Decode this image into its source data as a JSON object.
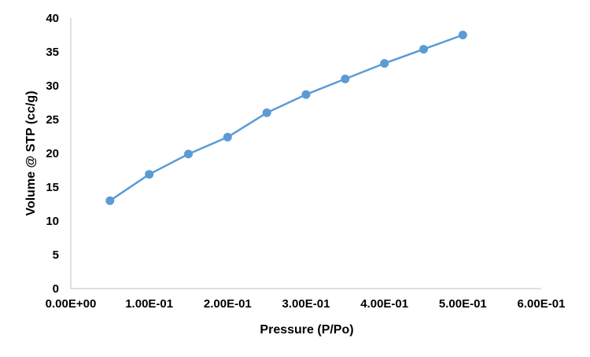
{
  "chart_data": {
    "type": "line",
    "xlabel": "Pressure (P/Po)",
    "ylabel": "Volume @ STP (cc/g)",
    "xlim": [
      0.0,
      0.6
    ],
    "ylim": [
      0,
      40
    ],
    "x_ticks": [
      "0.00E+00",
      "1.00E-01",
      "2.00E-01",
      "3.00E-01",
      "4.00E-01",
      "5.00E-01",
      "6.00E-01"
    ],
    "y_ticks": [
      "0",
      "5",
      "10",
      "15",
      "20",
      "25",
      "30",
      "35",
      "40"
    ],
    "grid": false,
    "legend": "none",
    "series": [
      {
        "color": "#5b9bd5",
        "marker": "circle",
        "x": [
          0.05,
          0.1,
          0.15,
          0.2,
          0.25,
          0.3,
          0.35,
          0.4,
          0.45,
          0.5
        ],
        "y": [
          13.0,
          16.9,
          19.9,
          22.4,
          26.0,
          28.7,
          31.0,
          33.3,
          35.4,
          37.5
        ]
      }
    ]
  }
}
